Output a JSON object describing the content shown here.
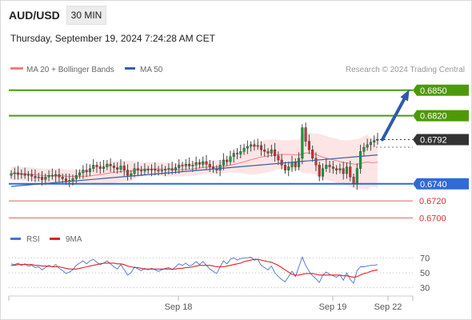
{
  "header": {
    "symbol": "AUD/USD",
    "timeframe": "30 MIN",
    "datetime": "Thursday, September 19, 2024 7:24:28 AM CET"
  },
  "legend": {
    "bollinger": {
      "label": "MA 20 + Bollinger Bands",
      "color": "#f08080"
    },
    "ma50": {
      "label": "MA 50",
      "color": "#3a5ea8"
    },
    "rsi": {
      "label": "RSI",
      "color": "#4a72c8"
    },
    "rsi_ma": {
      "label": "9MA",
      "color": "#e02020"
    }
  },
  "watermark": "Research © 2024 Trading Central",
  "x_labels": [
    "Sep 18",
    "Sep 19",
    "Sep 22"
  ],
  "chart_data": [
    {
      "type": "candlestick",
      "ylim": [
        0.669,
        0.6862
      ],
      "levels": [
        {
          "value": 0.685,
          "label": "0.6850",
          "color": "#4c9a0a",
          "kind": "resistance"
        },
        {
          "value": 0.682,
          "label": "0.6820",
          "color": "#4c9a0a",
          "kind": "resistance"
        },
        {
          "value": 0.6792,
          "label": "0.6792",
          "color": "#333333",
          "kind": "last-price"
        },
        {
          "value": 0.674,
          "label": "0.6740",
          "color": "#2f6ad8",
          "kind": "pivot"
        },
        {
          "value": 0.672,
          "label": "0.6720",
          "color": "#e06060",
          "kind": "support"
        },
        {
          "value": 0.67,
          "label": "0.6700",
          "color": "#e06060",
          "kind": "support"
        }
      ],
      "candles_close": [
        0.6752,
        0.6753,
        0.6751,
        0.6752,
        0.675,
        0.6751,
        0.6749,
        0.6747,
        0.6748,
        0.6745,
        0.6748,
        0.675,
        0.6749,
        0.6751,
        0.6748,
        0.6746,
        0.6743,
        0.6744,
        0.6746,
        0.675,
        0.6753,
        0.6756,
        0.6754,
        0.6758,
        0.6762,
        0.676,
        0.6758,
        0.676,
        0.6763,
        0.6761,
        0.6759,
        0.6757,
        0.6761,
        0.6756,
        0.675,
        0.6752,
        0.6758,
        0.6756,
        0.6755,
        0.6757,
        0.6756,
        0.6757,
        0.6756,
        0.6755,
        0.6756,
        0.6757,
        0.6758,
        0.6756,
        0.6759,
        0.6762,
        0.6761,
        0.6763,
        0.6761,
        0.6762,
        0.6765,
        0.6763,
        0.6766,
        0.6763,
        0.676,
        0.6758,
        0.6756,
        0.6762,
        0.6768,
        0.6766,
        0.6772,
        0.6776,
        0.6775,
        0.6778,
        0.6782,
        0.6784,
        0.6786,
        0.6784,
        0.6785,
        0.678,
        0.6778,
        0.6776,
        0.678,
        0.6773,
        0.6768,
        0.6762,
        0.6756,
        0.676,
        0.6765,
        0.676,
        0.677,
        0.6806,
        0.679,
        0.678,
        0.677,
        0.6762,
        0.6749,
        0.6758,
        0.6762,
        0.676,
        0.6758,
        0.6756,
        0.6758,
        0.6752,
        0.676,
        0.6748,
        0.674,
        0.6758,
        0.6778,
        0.6783,
        0.6786,
        0.6789,
        0.6791,
        0.6792
      ],
      "ma20_band": {
        "center_start": 0.675,
        "center_end": 0.6782
      },
      "ma50": {
        "start": 0.6737,
        "end": 0.6774
      },
      "projection": {
        "from": 0.6792,
        "to": 0.685
      }
    },
    {
      "type": "line",
      "title": "RSI",
      "ylim": [
        20,
        80
      ],
      "y_ticks": [
        "70",
        "50",
        "30"
      ],
      "series": [
        {
          "name": "RSI",
          "values": [
            62,
            61,
            63,
            60,
            62,
            59,
            60,
            57,
            58,
            54,
            57,
            60,
            58,
            61,
            56,
            53,
            49,
            51,
            54,
            60,
            63,
            66,
            62,
            66,
            68,
            64,
            61,
            63,
            66,
            62,
            58,
            55,
            61,
            54,
            47,
            50,
            58,
            55,
            53,
            56,
            54,
            56,
            54,
            52,
            54,
            56,
            57,
            54,
            58,
            62,
            60,
            63,
            59,
            61,
            65,
            61,
            65,
            60,
            55,
            52,
            49,
            58,
            66,
            62,
            68,
            70,
            67,
            69,
            70,
            70,
            71,
            67,
            68,
            60,
            57,
            54,
            59,
            50,
            45,
            41,
            38,
            45,
            52,
            45,
            58,
            71,
            60,
            52,
            46,
            42,
            37,
            47,
            51,
            48,
            46,
            44,
            47,
            40,
            50,
            41,
            36,
            53,
            58,
            58,
            59,
            60,
            60,
            61
          ]
        },
        {
          "name": "9MA",
          "values": [
            60,
            60,
            61,
            61,
            61,
            61,
            61,
            60,
            60,
            59,
            59,
            59,
            58,
            58,
            58,
            57,
            56,
            55,
            55,
            55,
            56,
            57,
            58,
            59,
            60,
            61,
            62,
            63,
            63,
            63,
            63,
            62,
            62,
            61,
            59,
            58,
            57,
            57,
            56,
            55,
            55,
            55,
            55,
            55,
            55,
            55,
            55,
            55,
            55,
            56,
            56,
            57,
            57,
            58,
            59,
            60,
            60,
            60,
            60,
            59,
            58,
            58,
            58,
            59,
            60,
            61,
            62,
            63,
            65,
            66,
            67,
            68,
            68,
            67,
            66,
            65,
            64,
            62,
            60,
            57,
            54,
            51,
            48,
            47,
            47,
            48,
            49,
            49,
            49,
            48,
            47,
            47,
            47,
            47,
            47,
            47,
            47,
            46,
            46,
            45,
            44,
            45,
            47,
            49,
            50,
            52,
            53,
            54
          ]
        }
      ]
    }
  ]
}
